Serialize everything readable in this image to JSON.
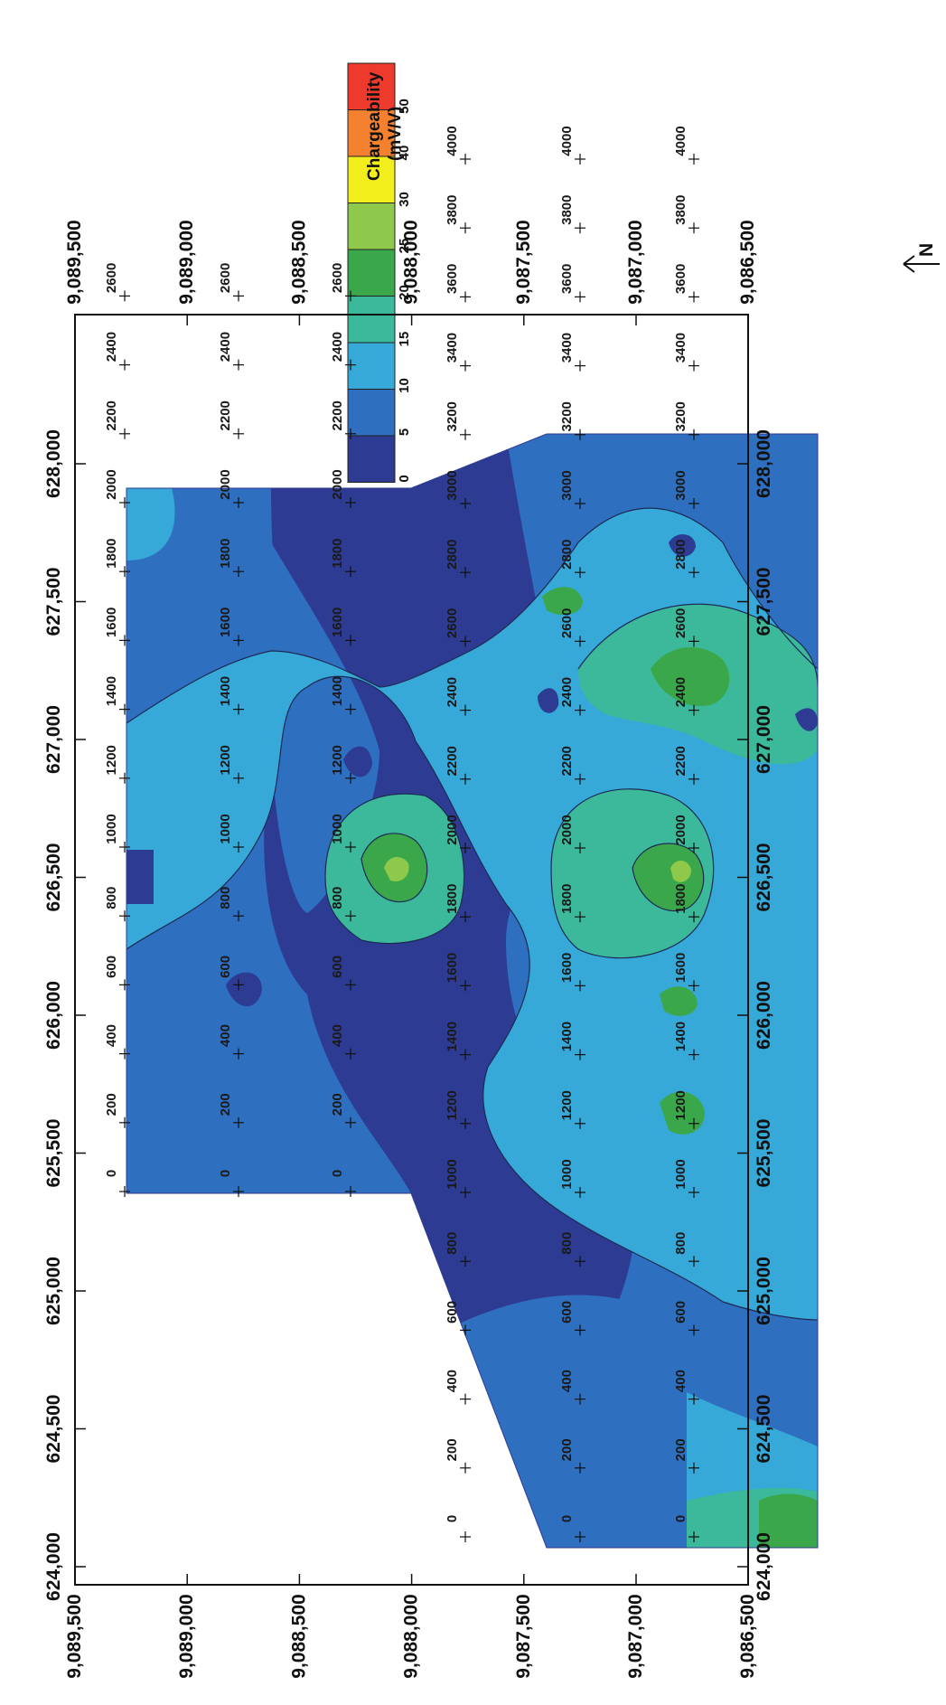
{
  "legend": {
    "title_line1": "Chargeability",
    "title_line2": "(mV/V)",
    "classes": [
      {
        "value": "50",
        "color": "#ed3a2c"
      },
      {
        "value": "40",
        "color": "#f3812f"
      },
      {
        "value": "30",
        "color": "#f2ee1c"
      },
      {
        "value": "25",
        "color": "#8fc94b"
      },
      {
        "value": "20",
        "color": "#3aa84a"
      },
      {
        "value": "15",
        "color": "#3cb89a"
      },
      {
        "value": "10",
        "color": "#36a9d8"
      },
      {
        "value": "5",
        "color": "#2f6fbf"
      },
      {
        "value": "0",
        "color": "#2d3b93"
      }
    ]
  },
  "north_arrow": {
    "label": "N"
  },
  "map": {
    "easting_ticks": [
      "624,000",
      "624,500",
      "625,000",
      "625,500",
      "626,000",
      "626,500",
      "627,000",
      "627,500",
      "628,000"
    ],
    "northing_ticks": [
      "9,089,500",
      "9,089,000",
      "9,088,500",
      "9,088,000",
      "9,087,500",
      "9,087,000",
      "9,086,500"
    ],
    "lines": [
      {
        "stations": [
          "0",
          "200",
          "400",
          "600",
          "800",
          "1000",
          "1200",
          "1400",
          "1600",
          "1800",
          "2000",
          "2200",
          "2400",
          "2600"
        ]
      },
      {
        "stations": [
          "0",
          "200",
          "400",
          "600",
          "800",
          "1000",
          "1200",
          "1400",
          "1600",
          "1800",
          "2000",
          "2200",
          "2400",
          "2600"
        ]
      },
      {
        "stations": [
          "0",
          "200",
          "400",
          "600",
          "800",
          "1000",
          "1200",
          "1400",
          "1600",
          "1800",
          "2000",
          "2200",
          "2400",
          "2600"
        ]
      },
      {
        "stations": [
          "0",
          "200",
          "400",
          "600",
          "800",
          "1000",
          "1200",
          "1400",
          "1600",
          "1800",
          "2000",
          "2200",
          "2400",
          "2600",
          "2800",
          "3000",
          "3200",
          "3400",
          "3600",
          "3800",
          "4000"
        ]
      },
      {
        "stations": [
          "0",
          "200",
          "400",
          "600",
          "800",
          "1000",
          "1200",
          "1400",
          "1600",
          "1800",
          "2000",
          "2200",
          "2400",
          "2600",
          "2800",
          "3000",
          "3200",
          "3400",
          "3600",
          "3800",
          "4000"
        ]
      },
      {
        "stations": [
          "0",
          "200",
          "400",
          "600",
          "800",
          "1000",
          "1200",
          "1400",
          "1600",
          "1800",
          "2000",
          "2200",
          "2400",
          "2600",
          "2800",
          "3000",
          "3200",
          "3400",
          "3600",
          "3800",
          "4000"
        ]
      }
    ]
  }
}
